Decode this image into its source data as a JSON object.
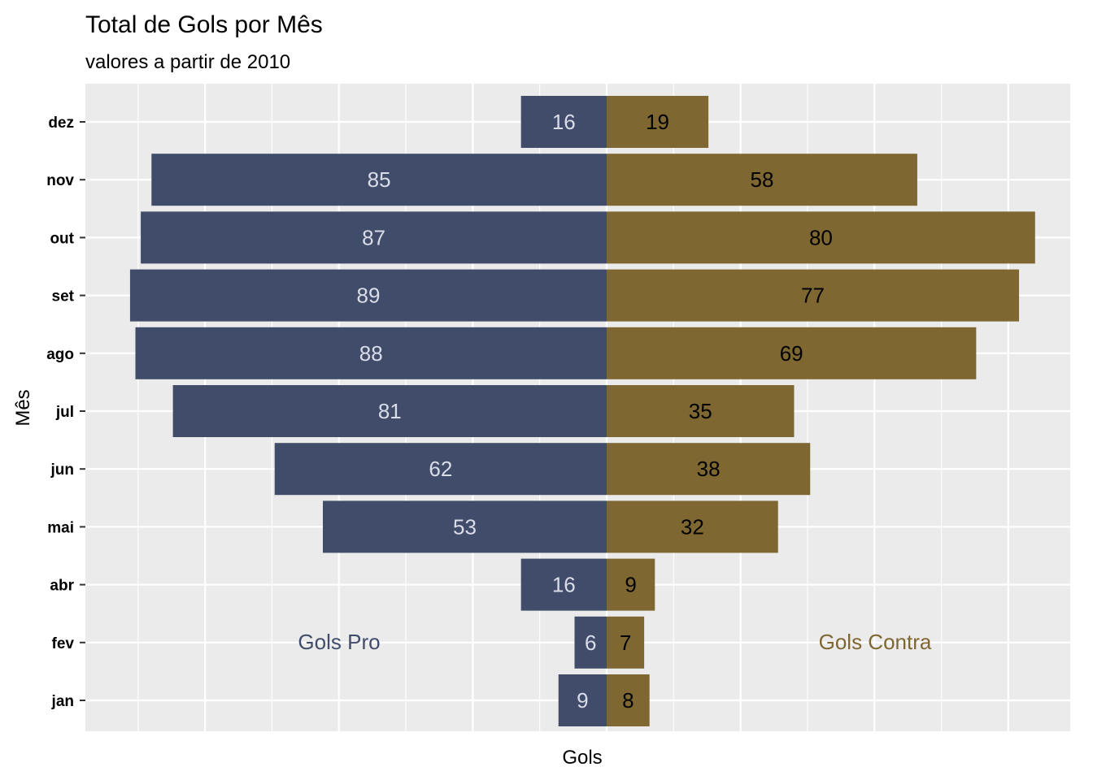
{
  "colors": {
    "panel_bg": "#ebebeb",
    "grid": "#ffffff",
    "pro": "#414c6b",
    "contra": "#7f6732",
    "pro_label_text": "#d9dde8",
    "contra_label_text": "#000000"
  },
  "chart_data": {
    "type": "bar",
    "orientation": "horizontal-diverging",
    "title": "Total de Gols por Mês",
    "subtitle": "valores a partir de 2010",
    "xlabel": "Gols",
    "ylabel": "Mês",
    "categories": [
      "jan",
      "fev",
      "abr",
      "mai",
      "jun",
      "jul",
      "ago",
      "set",
      "out",
      "nov",
      "dez"
    ],
    "series": [
      {
        "name": "Gols Pro",
        "side": "left",
        "values": [
          9,
          6,
          16,
          53,
          62,
          81,
          88,
          89,
          87,
          85,
          16
        ]
      },
      {
        "name": "Gols Contra",
        "side": "right",
        "values": [
          8,
          7,
          9,
          32,
          38,
          35,
          69,
          77,
          80,
          58,
          19
        ]
      }
    ],
    "xlim": [
      -98,
      87
    ],
    "grid": true,
    "x_tick_labels_shown": false
  }
}
